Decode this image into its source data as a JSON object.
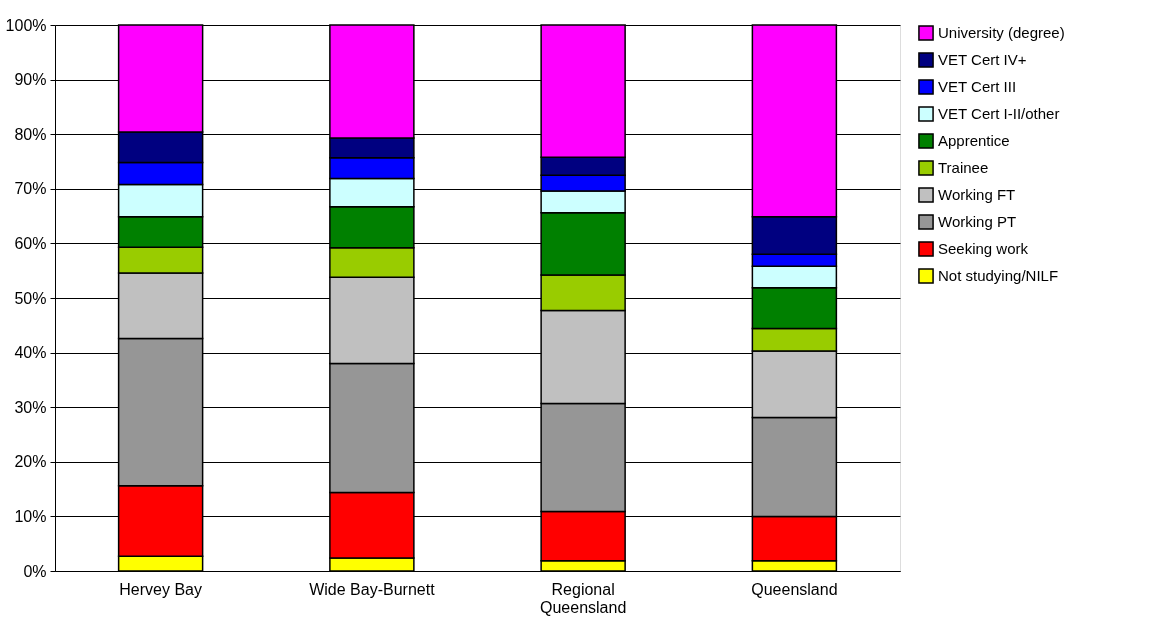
{
  "chart_data": {
    "type": "bar",
    "stacked": true,
    "categories": [
      "Hervey Bay",
      "Wide Bay-Burnett",
      "Regional Queensland",
      "Queensland"
    ],
    "series": [
      {
        "name": "Not studying/NILF",
        "color": "#ffff00",
        "values": [
          2.7,
          2.4,
          1.9,
          1.9
        ]
      },
      {
        "name": "Seeking work",
        "color": "#ff0000",
        "values": [
          12.9,
          12.0,
          9.0,
          8.1
        ]
      },
      {
        "name": "Working PT",
        "color": "#969696",
        "values": [
          27.0,
          23.6,
          19.8,
          18.1
        ]
      },
      {
        "name": "Working FT",
        "color": "#c0c0c0",
        "values": [
          12.0,
          15.8,
          17.0,
          12.2
        ]
      },
      {
        "name": "Trainee",
        "color": "#99cc00",
        "values": [
          4.7,
          5.4,
          6.5,
          4.1
        ]
      },
      {
        "name": "Apprentice",
        "color": "#008000",
        "values": [
          5.6,
          7.5,
          11.4,
          7.5
        ]
      },
      {
        "name": "VET Cert I-II/other",
        "color": "#ccffff",
        "values": [
          5.9,
          5.2,
          4.0,
          3.9
        ]
      },
      {
        "name": "VET Cert III",
        "color": "#0000ff",
        "values": [
          4.0,
          3.8,
          2.9,
          2.2
        ]
      },
      {
        "name": "VET Cert IV+",
        "color": "#000080",
        "values": [
          5.6,
          3.6,
          3.3,
          6.9
        ]
      },
      {
        "name": "University (degree)",
        "color": "#ff00ff",
        "values": [
          19.6,
          20.7,
          24.2,
          35.1
        ]
      }
    ],
    "ylim": [
      0,
      100
    ],
    "yticks": [
      {
        "value": 0,
        "label": "0%"
      },
      {
        "value": 10,
        "label": "10%"
      },
      {
        "value": 20,
        "label": "20%"
      },
      {
        "value": 30,
        "label": "30%"
      },
      {
        "value": 40,
        "label": "40%"
      },
      {
        "value": 50,
        "label": "50%"
      },
      {
        "value": 60,
        "label": "60%"
      },
      {
        "value": 70,
        "label": "70%"
      },
      {
        "value": 80,
        "label": "80%"
      },
      {
        "value": 90,
        "label": "90%"
      },
      {
        "value": 100,
        "label": "100%"
      }
    ],
    "grid": "y",
    "legend": "right"
  }
}
